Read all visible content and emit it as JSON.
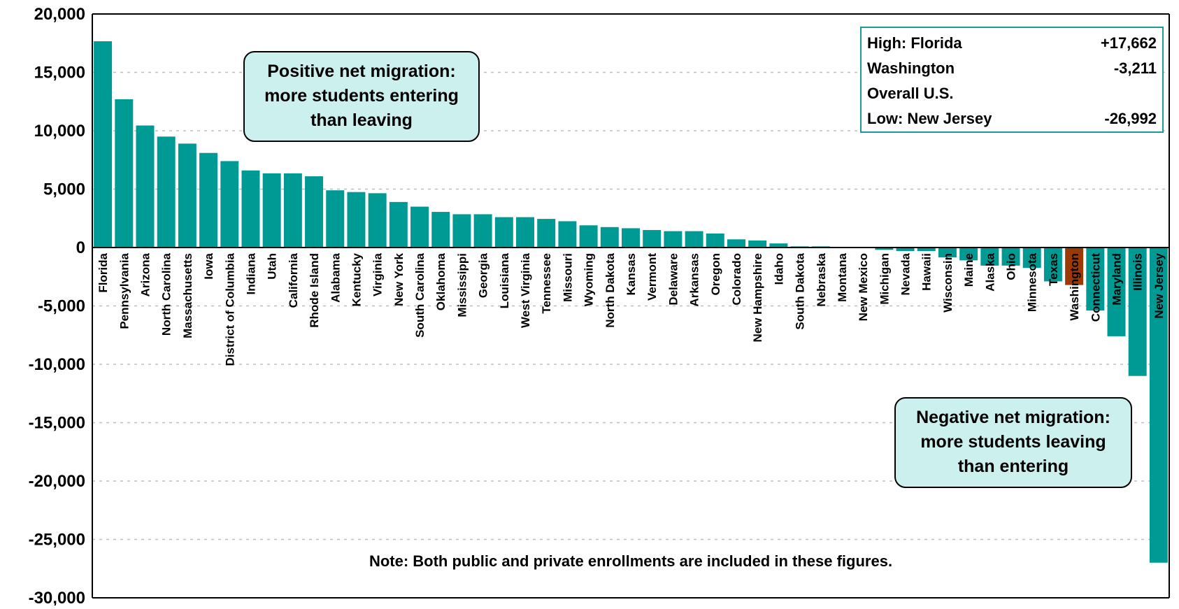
{
  "chart_data": {
    "type": "bar",
    "categories": [
      "Florida",
      "Pennsylvania",
      "Arizona",
      "North Carolina",
      "Massachusetts",
      "Iowa",
      "District of Columbia",
      "Indiana",
      "Utah",
      "California",
      "Rhode Island",
      "Alabama",
      "Kentucky",
      "Virginia",
      "New York",
      "South Carolina",
      "Oklahoma",
      "Mississippi",
      "Georgia",
      "Louisiana",
      "West Virginia",
      "Tennessee",
      "Missouri",
      "Wyoming",
      "North Dakota",
      "Kansas",
      "Vermont",
      "Delaware",
      "Arkansas",
      "Oregon",
      "Colorado",
      "New Hampshire",
      "Idaho",
      "South Dakota",
      "Nebraska",
      "Montana",
      "New Mexico",
      "Michigan",
      "Nevada",
      "Hawaii",
      "Wisconsin",
      "Maine",
      "Alaska",
      "Ohio",
      "Minnesota",
      "Texas",
      "Washington",
      "Connecticut",
      "Maryland",
      "Illinois",
      "New Jersey"
    ],
    "values": [
      17662,
      12700,
      10450,
      9500,
      8900,
      8100,
      7400,
      6600,
      6350,
      6350,
      6100,
      4900,
      4750,
      4650,
      3900,
      3500,
      3050,
      2850,
      2850,
      2600,
      2600,
      2450,
      2250,
      1900,
      1750,
      1650,
      1500,
      1400,
      1400,
      1200,
      700,
      600,
      350,
      100,
      100,
      -50,
      -50,
      -200,
      -300,
      -300,
      -850,
      -1100,
      -1550,
      -1550,
      -1750,
      -2900,
      -3211,
      -5400,
      -7600,
      -11000,
      -26992
    ],
    "highlight": "Washington",
    "colors": {
      "bar": "#009a94",
      "highlight": "#9c3a05"
    },
    "ylim": [
      -30000,
      20000
    ],
    "yticks": [
      "20,000",
      "15,000",
      "10,000",
      "5,000",
      "0",
      "-5,000",
      "-10,000",
      "-15,000",
      "-20,000",
      "-25,000",
      "-30,000"
    ],
    "ytick_values": [
      20000,
      15000,
      10000,
      5000,
      0,
      -5000,
      -10000,
      -15000,
      -20000,
      -25000,
      -30000
    ],
    "grid": true,
    "title": "",
    "xlabel": "",
    "ylabel": ""
  },
  "annotations": {
    "positive": [
      "Positive net migration:",
      "more students entering",
      "than leaving"
    ],
    "negative": [
      "Negative net migration:",
      "more students leaving",
      "than entering"
    ]
  },
  "legend": {
    "rows": [
      {
        "label": "High: Florida",
        "value": "+17,662"
      },
      {
        "label": "Washington",
        "value": "-3,211"
      },
      {
        "label": "Overall U.S.",
        "value": ""
      },
      {
        "label": "Low: New Jersey",
        "value": "-26,992"
      }
    ]
  },
  "note": "Note:  Both public and private enrollments are included in these figures."
}
